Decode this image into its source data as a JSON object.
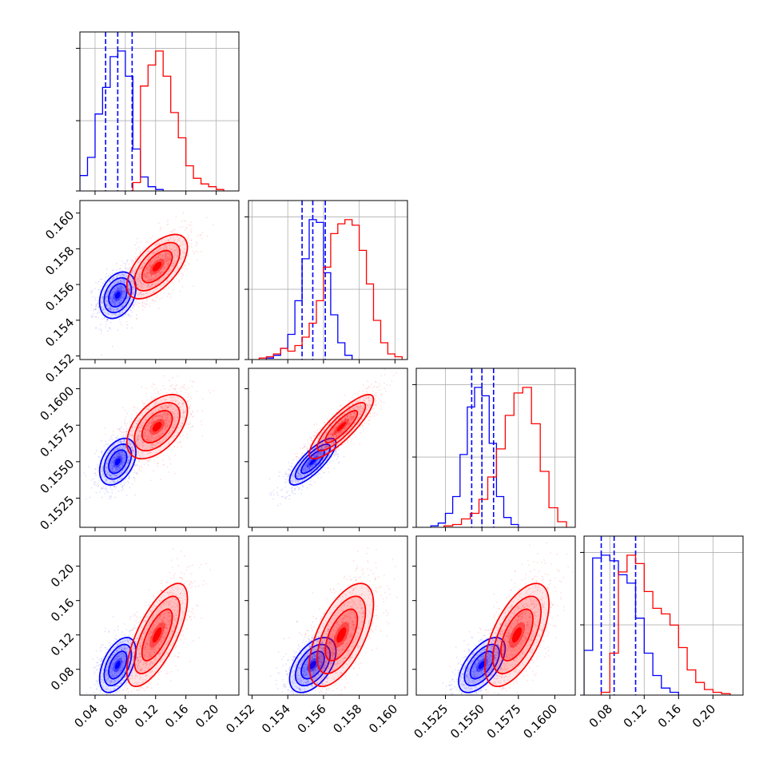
{
  "chart_data": {
    "type": "corner",
    "title": "",
    "grid": true,
    "params": [
      {
        "range": [
          0.02,
          0.23
        ],
        "ticks": [
          0.04,
          0.08,
          0.12,
          0.16,
          0.2
        ],
        "tick_labels": [
          "0.04",
          "0.08",
          "0.12",
          "0.16",
          "0.20"
        ]
      },
      {
        "range": [
          0.1518,
          0.1607
        ],
        "ticks": [
          0.152,
          0.154,
          0.156,
          0.158,
          0.16
        ],
        "tick_labels": [
          "0.152",
          "0.154",
          "0.156",
          "0.158",
          "0.160"
        ]
      },
      {
        "range": [
          0.1505,
          0.1614
        ],
        "ticks": [
          0.1525,
          0.155,
          0.1575,
          0.16
        ],
        "tick_labels": [
          "0.1525",
          "0.1550",
          "0.1575",
          "0.1600"
        ]
      },
      {
        "range": [
          0.05,
          0.235
        ],
        "ticks": [
          0.08,
          0.12,
          0.16,
          0.2
        ],
        "tick_labels": [
          "0.08",
          "0.12",
          "0.16",
          "0.20"
        ]
      }
    ],
    "series": [
      {
        "color": "#0000ff",
        "means": [
          0.07,
          0.1554,
          0.155,
          0.085
        ],
        "sds": [
          0.012,
          0.00065,
          0.0008,
          0.016
        ],
        "corr": [
          [
            1,
            0.3,
            0.4,
            0.5
          ],
          [
            0.3,
            1,
            0.8,
            0.5
          ],
          [
            0.4,
            0.8,
            1,
            0.6
          ],
          [
            0.5,
            0.5,
            0.6,
            1
          ]
        ],
        "quantiles": [
          [
            0.054,
            0.07,
            0.089
          ],
          [
            0.1548,
            0.1554,
            0.1561
          ],
          [
            0.1543,
            0.155,
            0.1558
          ],
          [
            0.07,
            0.085,
            0.11
          ]
        ],
        "histograms": [
          {
            "edges": [
              0.02,
              0.03,
              0.04,
              0.05,
              0.06,
              0.07,
              0.08,
              0.09,
              0.1,
              0.11,
              0.12,
              0.13
            ],
            "counts": [
              0.11,
              0.24,
              0.55,
              0.74,
              0.96,
              1.0,
              0.82,
              0.3,
              0.1,
              0.03,
              0.01
            ]
          },
          {
            "edges": [
              0.1528,
              0.1532,
              0.1536,
              0.154,
              0.1544,
              0.1548,
              0.1552,
              0.1556,
              0.156,
              0.1564,
              0.1568,
              0.1572,
              0.1576
            ],
            "counts": [
              0.01,
              0.03,
              0.08,
              0.18,
              0.42,
              0.72,
              1.0,
              0.98,
              0.62,
              0.32,
              0.12,
              0.03
            ]
          },
          {
            "edges": [
              0.1515,
              0.152,
              0.1525,
              0.153,
              0.1535,
              0.154,
              0.1545,
              0.155,
              0.1555,
              0.156,
              0.1565,
              0.157,
              0.1575
            ],
            "counts": [
              0.01,
              0.03,
              0.1,
              0.22,
              0.52,
              0.86,
              1.0,
              0.94,
              0.6,
              0.22,
              0.07,
              0.02
            ]
          },
          {
            "edges": [
              0.05,
              0.06,
              0.07,
              0.08,
              0.09,
              0.1,
              0.11,
              0.12,
              0.13,
              0.14,
              0.15,
              0.16
            ],
            "counts": [
              0.32,
              0.98,
              1.0,
              0.96,
              0.86,
              0.8,
              0.55,
              0.3,
              0.14,
              0.05,
              0.02
            ]
          }
        ]
      },
      {
        "color": "#ff0000",
        "means": [
          0.122,
          0.157,
          0.1574,
          0.12
        ],
        "sds": [
          0.02,
          0.0009,
          0.0011,
          0.03
        ],
        "corr": [
          [
            1,
            0.6,
            0.5,
            0.7
          ],
          [
            0.6,
            1,
            0.85,
            0.6
          ],
          [
            0.5,
            0.85,
            1,
            0.6
          ],
          [
            0.7,
            0.6,
            0.6,
            1
          ]
        ],
        "quantiles": [],
        "histograms": [
          {
            "edges": [
              0.09,
              0.1,
              0.11,
              0.12,
              0.13,
              0.14,
              0.15,
              0.16,
              0.17,
              0.18,
              0.19,
              0.2,
              0.21
            ],
            "counts": [
              0.06,
              0.75,
              0.9,
              1.0,
              0.82,
              0.56,
              0.38,
              0.18,
              0.09,
              0.05,
              0.03,
              0.01
            ]
          },
          {
            "edges": [
              0.1524,
              0.1528,
              0.1532,
              0.1536,
              0.154,
              0.1544,
              0.1548,
              0.1552,
              0.1556,
              0.156,
              0.1564,
              0.1568,
              0.1572,
              0.1576,
              0.158,
              0.1584,
              0.1588,
              0.1592,
              0.1596,
              0.16,
              0.1604
            ],
            "counts": [
              0.01,
              0.02,
              0.04,
              0.08,
              0.06,
              0.1,
              0.16,
              0.26,
              0.42,
              0.66,
              0.9,
              0.97,
              1.0,
              0.96,
              0.78,
              0.54,
              0.28,
              0.12,
              0.04,
              0.02
            ]
          },
          {
            "edges": [
              0.1524,
              0.153,
              0.1536,
              0.1542,
              0.1548,
              0.1554,
              0.156,
              0.1566,
              0.1572,
              0.1578,
              0.1584,
              0.159,
              0.1596,
              0.1602,
              0.1608
            ],
            "counts": [
              0.01,
              0.02,
              0.06,
              0.1,
              0.2,
              0.36,
              0.56,
              0.8,
              0.96,
              1.0,
              0.74,
              0.4,
              0.14,
              0.04
            ]
          },
          {
            "edges": [
              0.07,
              0.08,
              0.09,
              0.1,
              0.11,
              0.12,
              0.13,
              0.14,
              0.15,
              0.16,
              0.17,
              0.18,
              0.19,
              0.2,
              0.21,
              0.22
            ],
            "counts": [
              0.02,
              0.3,
              0.88,
              1.0,
              0.94,
              0.74,
              0.62,
              0.58,
              0.5,
              0.34,
              0.18,
              0.09,
              0.04,
              0.02,
              0.01
            ]
          }
        ]
      }
    ]
  }
}
